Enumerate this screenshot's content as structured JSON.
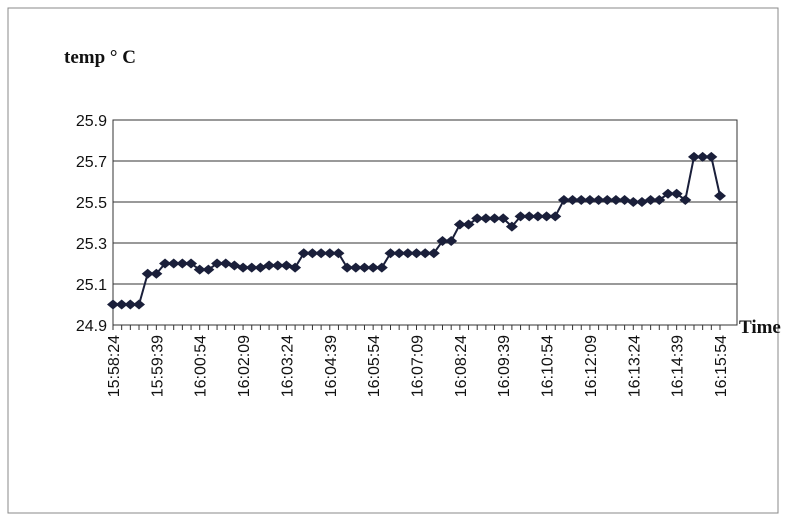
{
  "chart_data": {
    "type": "line",
    "y_label": "temp ° C",
    "x_label": "Time",
    "categories": [
      "15:58:24",
      null,
      null,
      null,
      null,
      "15:59:39",
      null,
      null,
      null,
      null,
      "16:00:54",
      null,
      null,
      null,
      null,
      "16:02:09",
      null,
      null,
      null,
      null,
      "16:03:24",
      null,
      null,
      null,
      null,
      "16:04:39",
      null,
      null,
      null,
      null,
      "16:05:54",
      null,
      null,
      null,
      null,
      "16:07:09",
      null,
      null,
      null,
      null,
      "16:08:24",
      null,
      null,
      null,
      null,
      "16:09:39",
      null,
      null,
      null,
      null,
      "16:10:54",
      null,
      null,
      null,
      null,
      "16:12:09",
      null,
      null,
      null,
      null,
      "16:13:24",
      null,
      null,
      null,
      null,
      "16:14:39",
      null,
      null,
      null,
      null,
      "16:15:54"
    ],
    "series": [
      {
        "color": "#1a1f3a",
        "values": [
          25.0,
          25.0,
          25.0,
          25.0,
          25.15,
          25.15,
          25.2,
          25.2,
          25.2,
          25.2,
          25.17,
          25.17,
          25.2,
          25.2,
          25.19,
          25.18,
          25.18,
          25.18,
          25.19,
          25.19,
          25.19,
          25.18,
          25.25,
          25.25,
          25.25,
          25.25,
          25.25,
          25.18,
          25.18,
          25.18,
          25.18,
          25.18,
          25.25,
          25.25,
          25.25,
          25.25,
          25.25,
          25.25,
          25.31,
          25.31,
          25.39,
          25.39,
          25.42,
          25.42,
          25.42,
          25.42,
          25.38,
          25.43,
          25.43,
          25.43,
          25.43,
          25.43,
          25.51,
          25.51,
          25.51,
          25.51,
          25.51,
          25.51,
          25.51,
          25.51,
          25.5,
          25.5,
          25.51,
          25.51,
          25.54,
          25.54,
          25.51,
          25.72,
          25.72,
          25.72,
          25.53
        ]
      }
    ],
    "ylim": [
      24.9,
      25.9
    ],
    "yticks": [
      24.9,
      25.1,
      25.3,
      25.5,
      25.7,
      25.9
    ],
    "grid": true
  }
}
